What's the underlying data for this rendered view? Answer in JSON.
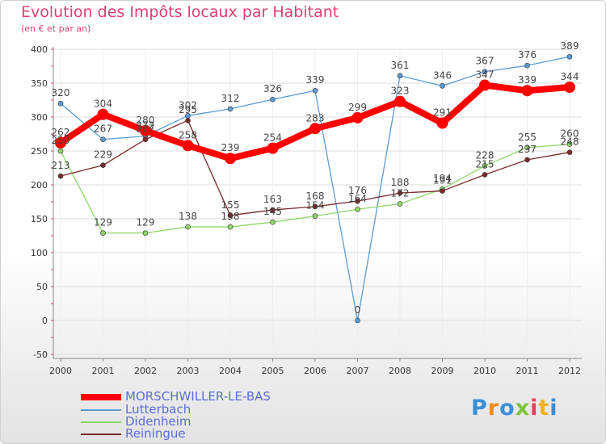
{
  "title": "Evolution des Impôts locaux par Habitant",
  "subtitle": "(en € et par an)",
  "logo": {
    "text": "Proxiti",
    "letters": [
      "P",
      "r",
      "o",
      "x",
      "i",
      "t",
      "i"
    ],
    "colors": [
      "#3a8fd8",
      "#f08a1c",
      "#3a8fd8",
      "#7cc43a",
      "#e84060",
      "#f0b020",
      "#3a8fd8"
    ]
  },
  "chart_data": {
    "type": "line",
    "title": "Evolution des Impôts locaux par Habitant",
    "subtitle": "(en € et par an)",
    "x": [
      "2000",
      "2001",
      "2002",
      "2003",
      "2004",
      "2005",
      "2006",
      "2007",
      "2008",
      "2009",
      "2010",
      "2011",
      "2012"
    ],
    "ylim": [
      -50,
      400
    ],
    "yticks": [
      "400",
      "350",
      "300",
      "250",
      "200",
      "150",
      "100",
      "50",
      "0",
      "-50"
    ],
    "ytick_values": [
      400,
      350,
      300,
      250,
      200,
      150,
      100,
      50,
      0,
      -50
    ],
    "grid": true,
    "legend_position": "bottom-left",
    "series": [
      {
        "name": "MORSCHWILLER-LE-BAS",
        "color": "#ff0000",
        "values": [
          262,
          304,
          280,
          258,
          239,
          254,
          283,
          299,
          323,
          291,
          347,
          339,
          344
        ],
        "labels": [
          "262",
          "304",
          "280",
          "258",
          "239",
          "254",
          "283",
          "299",
          "323",
          "291",
          "347",
          "339",
          "344"
        ]
      },
      {
        "name": "Lutterbach",
        "color": "#5b9bd5",
        "values": [
          320,
          267,
          272,
          302,
          312,
          326,
          339,
          0,
          361,
          346,
          367,
          376,
          389
        ],
        "labels": [
          "320",
          "267",
          "272",
          "302",
          "312",
          "326",
          "339",
          "0",
          "361",
          "346",
          "367",
          "376",
          "389"
        ]
      },
      {
        "name": "Didenheim",
        "color": "#8fd66a",
        "values": [
          250,
          129,
          129,
          138,
          138,
          145,
          154,
          164,
          172,
          194,
          228,
          255,
          260
        ],
        "labels": [
          "250",
          "129",
          "129",
          "138",
          "138",
          "145",
          "154",
          "164",
          "172",
          "194",
          "228",
          "255",
          "260"
        ]
      },
      {
        "name": "Reiningue",
        "color": "#7a2a2a",
        "values": [
          213,
          229,
          267,
          295,
          155,
          163,
          168,
          176,
          188,
          191,
          215,
          237,
          248
        ],
        "labels": [
          "213",
          "229",
          "267",
          "295",
          "155",
          "163",
          "168",
          "176",
          "188",
          "191",
          "215",
          "237",
          "248"
        ]
      }
    ]
  }
}
